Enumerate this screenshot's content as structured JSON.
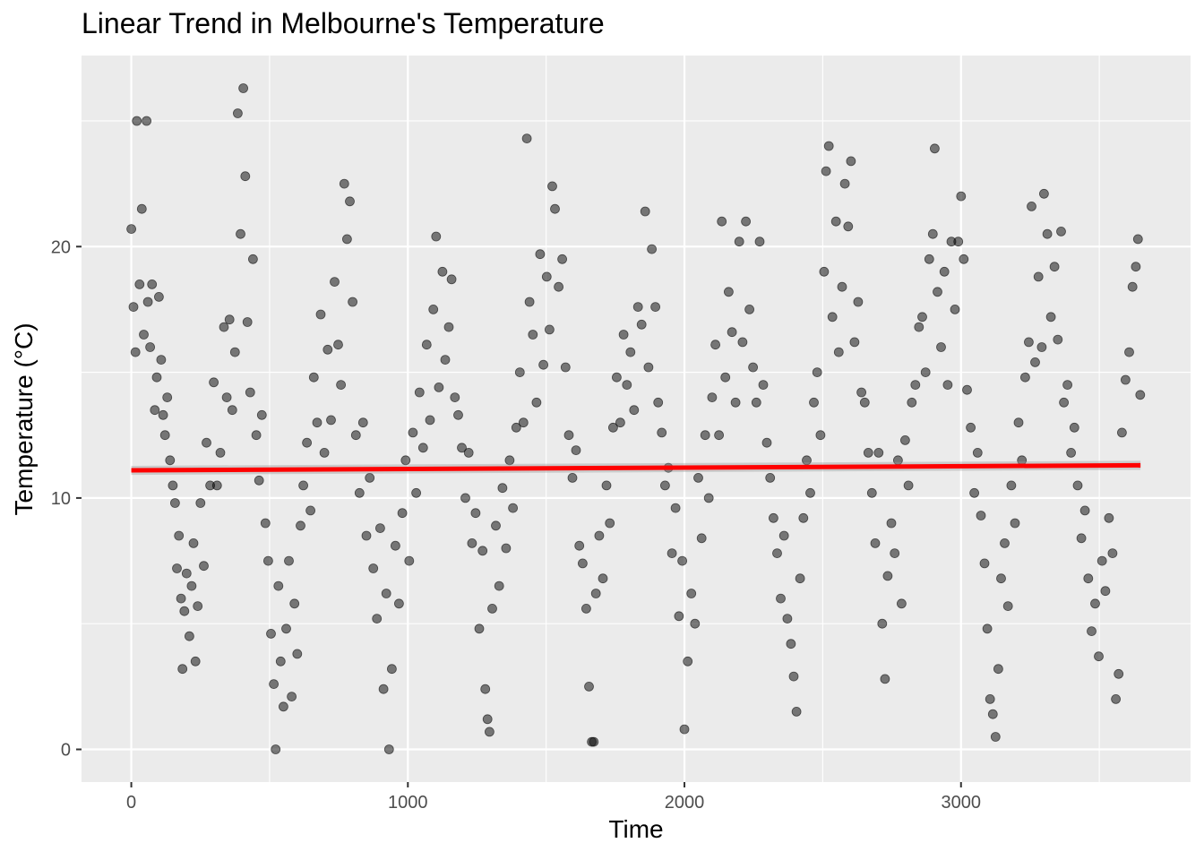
{
  "chart_data": {
    "type": "scatter",
    "title": "Linear Trend in Melbourne's Temperature",
    "xlabel": "Time",
    "ylabel": "Temperature (°C)",
    "xlim": [
      -180,
      3830
    ],
    "ylim": [
      -1.3,
      27.6
    ],
    "x_ticks": [
      0,
      1000,
      2000,
      3000
    ],
    "x_tick_labels": [
      "0",
      "1000",
      "2000",
      "3000"
    ],
    "y_ticks": [
      0,
      10,
      20
    ],
    "y_tick_labels": [
      "0",
      "10",
      "20"
    ],
    "grid": true,
    "legend": "none",
    "point_color": "#000000",
    "point_opacity": 0.5,
    "trend_line": {
      "x": [
        0,
        3649
      ],
      "y": [
        11.1,
        11.3
      ],
      "color": "#ff0000"
    },
    "series": [
      {
        "values": [
          [
            0,
            20.7
          ],
          [
            8,
            17.6
          ],
          [
            15,
            15.8
          ],
          [
            20,
            25.0
          ],
          [
            30,
            18.5
          ],
          [
            38,
            21.5
          ],
          [
            45,
            16.5
          ],
          [
            55,
            25.0
          ],
          [
            60,
            17.8
          ],
          [
            68,
            16.0
          ],
          [
            75,
            18.5
          ],
          [
            85,
            13.5
          ],
          [
            92,
            14.8
          ],
          [
            100,
            18.0
          ],
          [
            108,
            15.5
          ],
          [
            115,
            13.3
          ],
          [
            122,
            12.5
          ],
          [
            130,
            14.0
          ],
          [
            140,
            11.5
          ],
          [
            150,
            10.5
          ],
          [
            158,
            9.8
          ],
          [
            165,
            7.2
          ],
          [
            172,
            8.5
          ],
          [
            180,
            6.0
          ],
          [
            185,
            3.2
          ],
          [
            192,
            5.5
          ],
          [
            200,
            7.0
          ],
          [
            210,
            4.5
          ],
          [
            218,
            6.5
          ],
          [
            225,
            8.2
          ],
          [
            232,
            3.5
          ],
          [
            240,
            5.7
          ],
          [
            250,
            9.8
          ],
          [
            262,
            7.3
          ],
          [
            272,
            12.2
          ],
          [
            285,
            10.5
          ],
          [
            298,
            14.6
          ],
          [
            310,
            10.5
          ],
          [
            322,
            11.8
          ],
          [
            335,
            16.8
          ],
          [
            345,
            14.0
          ],
          [
            355,
            17.1
          ],
          [
            365,
            13.5
          ],
          [
            375,
            15.8
          ],
          [
            385,
            25.3
          ],
          [
            395,
            20.5
          ],
          [
            405,
            26.3
          ],
          [
            412,
            22.8
          ],
          [
            420,
            17.0
          ],
          [
            430,
            14.2
          ],
          [
            440,
            19.5
          ],
          [
            452,
            12.5
          ],
          [
            462,
            10.7
          ],
          [
            472,
            13.3
          ],
          [
            485,
            9.0
          ],
          [
            495,
            7.5
          ],
          [
            505,
            4.6
          ],
          [
            515,
            2.6
          ],
          [
            522,
            0.0
          ],
          [
            532,
            6.5
          ],
          [
            540,
            3.5
          ],
          [
            550,
            1.7
          ],
          [
            560,
            4.8
          ],
          [
            570,
            7.5
          ],
          [
            580,
            2.1
          ],
          [
            590,
            5.8
          ],
          [
            600,
            3.8
          ],
          [
            612,
            8.9
          ],
          [
            622,
            10.5
          ],
          [
            635,
            12.2
          ],
          [
            648,
            9.5
          ],
          [
            660,
            14.8
          ],
          [
            672,
            13.0
          ],
          [
            685,
            17.3
          ],
          [
            698,
            11.8
          ],
          [
            710,
            15.9
          ],
          [
            722,
            13.1
          ],
          [
            735,
            18.6
          ],
          [
            748,
            16.1
          ],
          [
            758,
            14.5
          ],
          [
            770,
            22.5
          ],
          [
            780,
            20.3
          ],
          [
            790,
            21.8
          ],
          [
            800,
            17.8
          ],
          [
            812,
            12.5
          ],
          [
            825,
            10.2
          ],
          [
            838,
            13.0
          ],
          [
            850,
            8.5
          ],
          [
            862,
            10.8
          ],
          [
            875,
            7.2
          ],
          [
            888,
            5.2
          ],
          [
            900,
            8.8
          ],
          [
            912,
            2.4
          ],
          [
            922,
            6.2
          ],
          [
            932,
            0.0
          ],
          [
            942,
            3.2
          ],
          [
            955,
            8.1
          ],
          [
            968,
            5.8
          ],
          [
            980,
            9.4
          ],
          [
            992,
            11.5
          ],
          [
            1005,
            7.5
          ],
          [
            1018,
            12.6
          ],
          [
            1030,
            10.2
          ],
          [
            1042,
            14.2
          ],
          [
            1055,
            12.0
          ],
          [
            1068,
            16.1
          ],
          [
            1080,
            13.1
          ],
          [
            1092,
            17.5
          ],
          [
            1102,
            20.4
          ],
          [
            1112,
            14.4
          ],
          [
            1125,
            19.0
          ],
          [
            1135,
            15.5
          ],
          [
            1148,
            16.8
          ],
          [
            1158,
            18.7
          ],
          [
            1170,
            14.0
          ],
          [
            1182,
            13.3
          ],
          [
            1195,
            12.0
          ],
          [
            1208,
            10.0
          ],
          [
            1220,
            11.8
          ],
          [
            1232,
            8.2
          ],
          [
            1245,
            9.4
          ],
          [
            1258,
            4.8
          ],
          [
            1270,
            7.9
          ],
          [
            1280,
            2.4
          ],
          [
            1288,
            1.2
          ],
          [
            1295,
            0.7
          ],
          [
            1305,
            5.6
          ],
          [
            1318,
            8.9
          ],
          [
            1330,
            6.5
          ],
          [
            1342,
            10.4
          ],
          [
            1355,
            8.0
          ],
          [
            1368,
            11.5
          ],
          [
            1380,
            9.6
          ],
          [
            1392,
            12.8
          ],
          [
            1405,
            15.0
          ],
          [
            1418,
            13.0
          ],
          [
            1430,
            24.3
          ],
          [
            1440,
            17.8
          ],
          [
            1452,
            16.5
          ],
          [
            1465,
            13.8
          ],
          [
            1478,
            19.7
          ],
          [
            1490,
            15.3
          ],
          [
            1502,
            18.8
          ],
          [
            1512,
            16.7
          ],
          [
            1522,
            22.4
          ],
          [
            1532,
            21.5
          ],
          [
            1545,
            18.4
          ],
          [
            1558,
            19.5
          ],
          [
            1570,
            15.2
          ],
          [
            1582,
            12.5
          ],
          [
            1595,
            10.8
          ],
          [
            1608,
            11.9
          ],
          [
            1620,
            8.1
          ],
          [
            1632,
            7.4
          ],
          [
            1645,
            5.6
          ],
          [
            1655,
            2.5
          ],
          [
            1665,
            0.3
          ],
          [
            1672,
            0.3
          ],
          [
            1680,
            6.2
          ],
          [
            1692,
            8.5
          ],
          [
            1705,
            6.8
          ],
          [
            1718,
            10.5
          ],
          [
            1730,
            9.0
          ],
          [
            1742,
            12.8
          ],
          [
            1755,
            14.8
          ],
          [
            1768,
            13.0
          ],
          [
            1780,
            16.5
          ],
          [
            1792,
            14.5
          ],
          [
            1805,
            15.8
          ],
          [
            1818,
            13.5
          ],
          [
            1832,
            17.6
          ],
          [
            1845,
            16.9
          ],
          [
            1858,
            21.4
          ],
          [
            1870,
            15.2
          ],
          [
            1882,
            19.9
          ],
          [
            1895,
            17.6
          ],
          [
            1905,
            13.8
          ],
          [
            1918,
            12.6
          ],
          [
            1930,
            10.5
          ],
          [
            1942,
            11.2
          ],
          [
            1955,
            7.8
          ],
          [
            1968,
            9.6
          ],
          [
            1980,
            5.3
          ],
          [
            1992,
            7.5
          ],
          [
            2000,
            0.8
          ],
          [
            2012,
            3.5
          ],
          [
            2025,
            6.2
          ],
          [
            2038,
            5.0
          ],
          [
            2050,
            10.8
          ],
          [
            2062,
            8.4
          ],
          [
            2075,
            12.5
          ],
          [
            2088,
            10.0
          ],
          [
            2100,
            14.0
          ],
          [
            2112,
            16.1
          ],
          [
            2125,
            12.5
          ],
          [
            2135,
            21.0
          ],
          [
            2148,
            14.8
          ],
          [
            2160,
            18.2
          ],
          [
            2172,
            16.6
          ],
          [
            2185,
            13.8
          ],
          [
            2198,
            20.2
          ],
          [
            2210,
            16.2
          ],
          [
            2222,
            21.0
          ],
          [
            2235,
            17.5
          ],
          [
            2248,
            15.2
          ],
          [
            2260,
            13.8
          ],
          [
            2272,
            20.2
          ],
          [
            2285,
            14.5
          ],
          [
            2298,
            12.2
          ],
          [
            2310,
            10.8
          ],
          [
            2322,
            9.2
          ],
          [
            2335,
            7.8
          ],
          [
            2348,
            6.0
          ],
          [
            2360,
            8.5
          ],
          [
            2372,
            5.2
          ],
          [
            2385,
            4.2
          ],
          [
            2395,
            2.9
          ],
          [
            2405,
            1.5
          ],
          [
            2418,
            6.8
          ],
          [
            2430,
            9.2
          ],
          [
            2442,
            11.5
          ],
          [
            2455,
            10.2
          ],
          [
            2468,
            13.8
          ],
          [
            2480,
            15.0
          ],
          [
            2492,
            12.5
          ],
          [
            2505,
            19.0
          ],
          [
            2512,
            23.0
          ],
          [
            2522,
            24.0
          ],
          [
            2535,
            17.2
          ],
          [
            2548,
            21.0
          ],
          [
            2558,
            15.8
          ],
          [
            2570,
            18.4
          ],
          [
            2580,
            22.5
          ],
          [
            2592,
            20.8
          ],
          [
            2602,
            23.4
          ],
          [
            2615,
            16.2
          ],
          [
            2628,
            17.8
          ],
          [
            2640,
            14.2
          ],
          [
            2652,
            13.8
          ],
          [
            2665,
            11.8
          ],
          [
            2678,
            10.2
          ],
          [
            2690,
            8.2
          ],
          [
            2702,
            11.8
          ],
          [
            2715,
            5.0
          ],
          [
            2725,
            2.8
          ],
          [
            2735,
            6.9
          ],
          [
            2748,
            9.0
          ],
          [
            2760,
            7.8
          ],
          [
            2772,
            11.5
          ],
          [
            2785,
            5.8
          ],
          [
            2798,
            12.3
          ],
          [
            2810,
            10.5
          ],
          [
            2822,
            13.8
          ],
          [
            2835,
            14.5
          ],
          [
            2848,
            16.8
          ],
          [
            2860,
            17.2
          ],
          [
            2872,
            15.0
          ],
          [
            2885,
            19.5
          ],
          [
            2898,
            20.5
          ],
          [
            2905,
            23.9
          ],
          [
            2915,
            18.2
          ],
          [
            2928,
            16.0
          ],
          [
            2940,
            19.0
          ],
          [
            2952,
            14.5
          ],
          [
            2965,
            20.2
          ],
          [
            2978,
            17.5
          ],
          [
            2990,
            20.2
          ],
          [
            3000,
            22.0
          ],
          [
            3010,
            19.5
          ],
          [
            3022,
            14.3
          ],
          [
            3035,
            12.8
          ],
          [
            3048,
            10.2
          ],
          [
            3060,
            11.8
          ],
          [
            3072,
            9.3
          ],
          [
            3085,
            7.4
          ],
          [
            3095,
            4.8
          ],
          [
            3105,
            2.0
          ],
          [
            3115,
            1.4
          ],
          [
            3125,
            0.5
          ],
          [
            3135,
            3.2
          ],
          [
            3145,
            6.8
          ],
          [
            3158,
            8.2
          ],
          [
            3170,
            5.7
          ],
          [
            3182,
            10.5
          ],
          [
            3195,
            9.0
          ],
          [
            3208,
            13.0
          ],
          [
            3220,
            11.5
          ],
          [
            3232,
            14.8
          ],
          [
            3245,
            16.2
          ],
          [
            3255,
            21.6
          ],
          [
            3268,
            15.4
          ],
          [
            3280,
            18.8
          ],
          [
            3292,
            16.0
          ],
          [
            3300,
            22.1
          ],
          [
            3312,
            20.5
          ],
          [
            3325,
            17.2
          ],
          [
            3338,
            19.2
          ],
          [
            3350,
            16.3
          ],
          [
            3362,
            20.6
          ],
          [
            3372,
            13.8
          ],
          [
            3385,
            14.5
          ],
          [
            3398,
            11.8
          ],
          [
            3410,
            12.8
          ],
          [
            3422,
            10.5
          ],
          [
            3435,
            8.4
          ],
          [
            3448,
            9.5
          ],
          [
            3460,
            6.8
          ],
          [
            3472,
            4.7
          ],
          [
            3485,
            5.8
          ],
          [
            3498,
            3.7
          ],
          [
            3510,
            7.5
          ],
          [
            3522,
            6.3
          ],
          [
            3535,
            9.2
          ],
          [
            3548,
            7.8
          ],
          [
            3560,
            2.0
          ],
          [
            3570,
            3.0
          ],
          [
            3582,
            12.6
          ],
          [
            3595,
            14.7
          ],
          [
            3608,
            15.8
          ],
          [
            3620,
            18.4
          ],
          [
            3632,
            19.2
          ],
          [
            3640,
            20.3
          ],
          [
            3648,
            14.1
          ]
        ]
      }
    ]
  }
}
